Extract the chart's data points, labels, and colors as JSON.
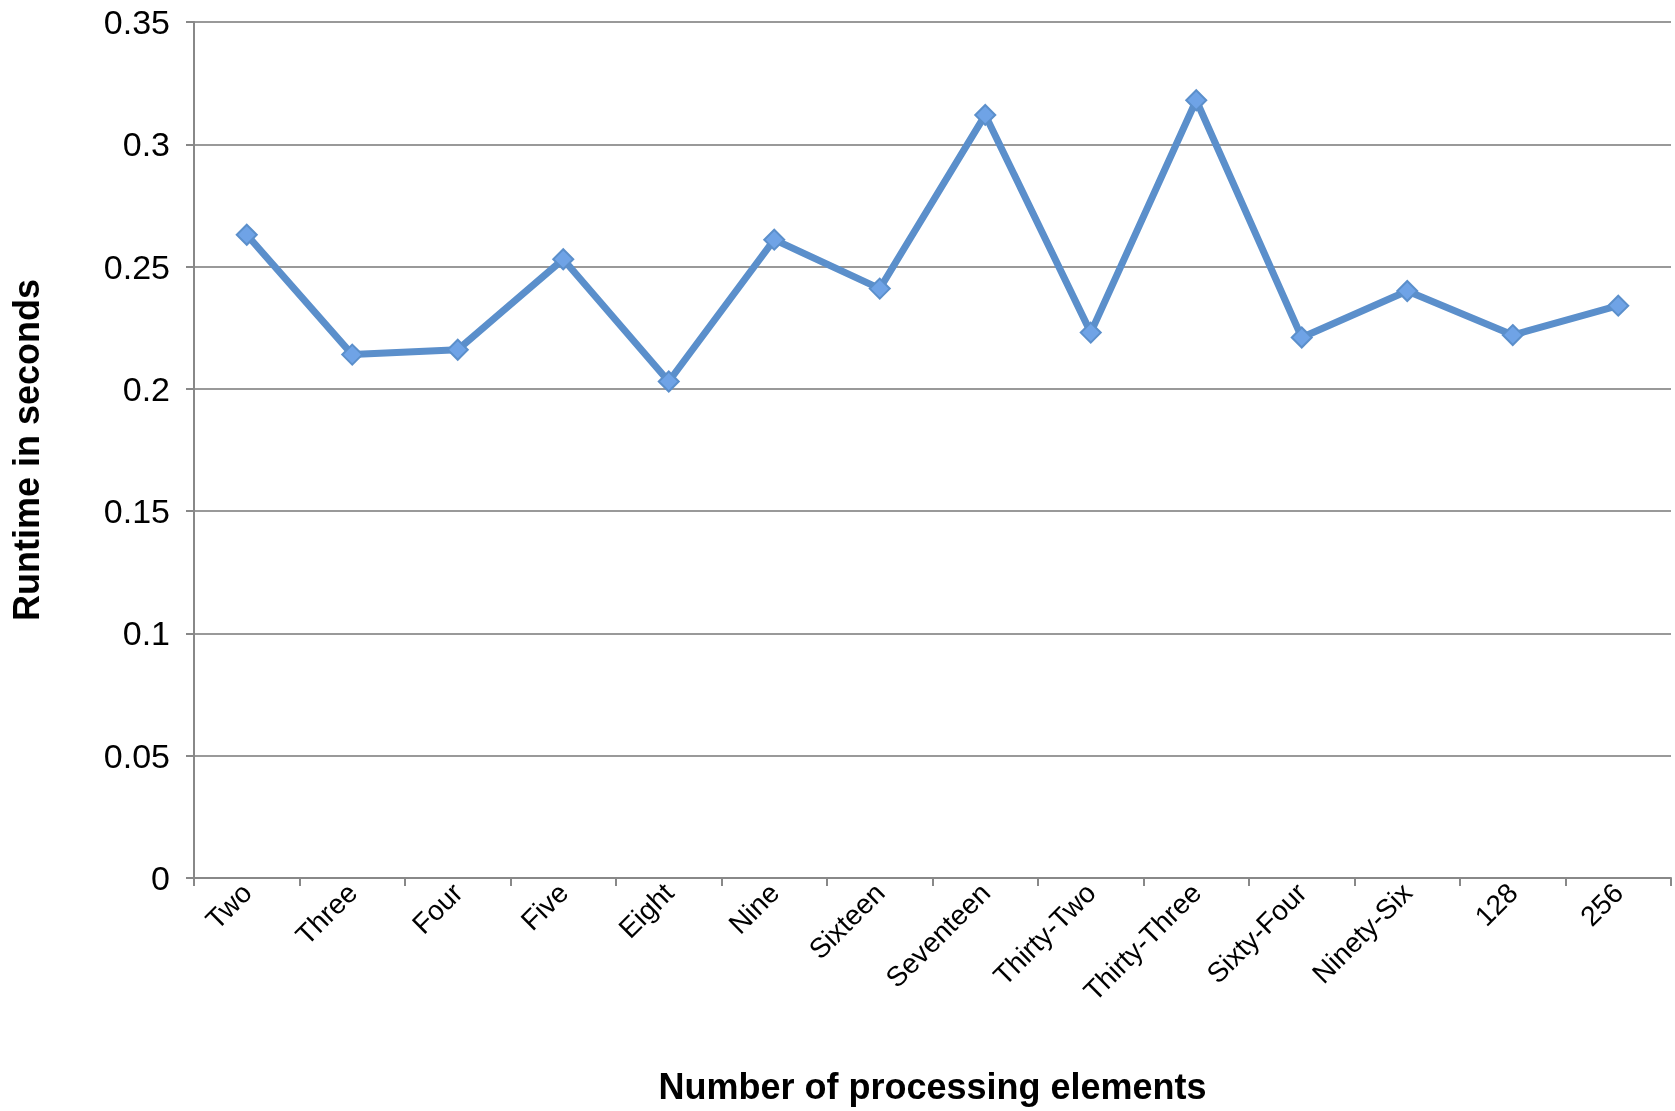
{
  "chart_data": {
    "type": "line",
    "xlabel": "Number of processing elements",
    "ylabel": "Runtime in seconds",
    "categories": [
      "Two",
      "Three",
      "Four",
      "Five",
      "Eight",
      "Nine",
      "Sixteen",
      "Seventeen",
      "Thirty-Two",
      "Thirty-Three",
      "Sixty-Four",
      "Ninety-Six",
      "128",
      "256"
    ],
    "series": [
      {
        "color": "#5b8fcb",
        "values": [
          0.263,
          0.214,
          0.216,
          0.253,
          0.203,
          0.261,
          0.241,
          0.312,
          0.223,
          0.318,
          0.221,
          0.24,
          0.222,
          0.234
        ]
      }
    ],
    "ylim": [
      0,
      0.35
    ],
    "yticks": [
      0,
      0.05,
      0.1,
      0.15,
      0.2,
      0.25,
      0.3,
      0.35
    ],
    "grid": "y",
    "marker": "diamond",
    "line_style": "solid"
  }
}
